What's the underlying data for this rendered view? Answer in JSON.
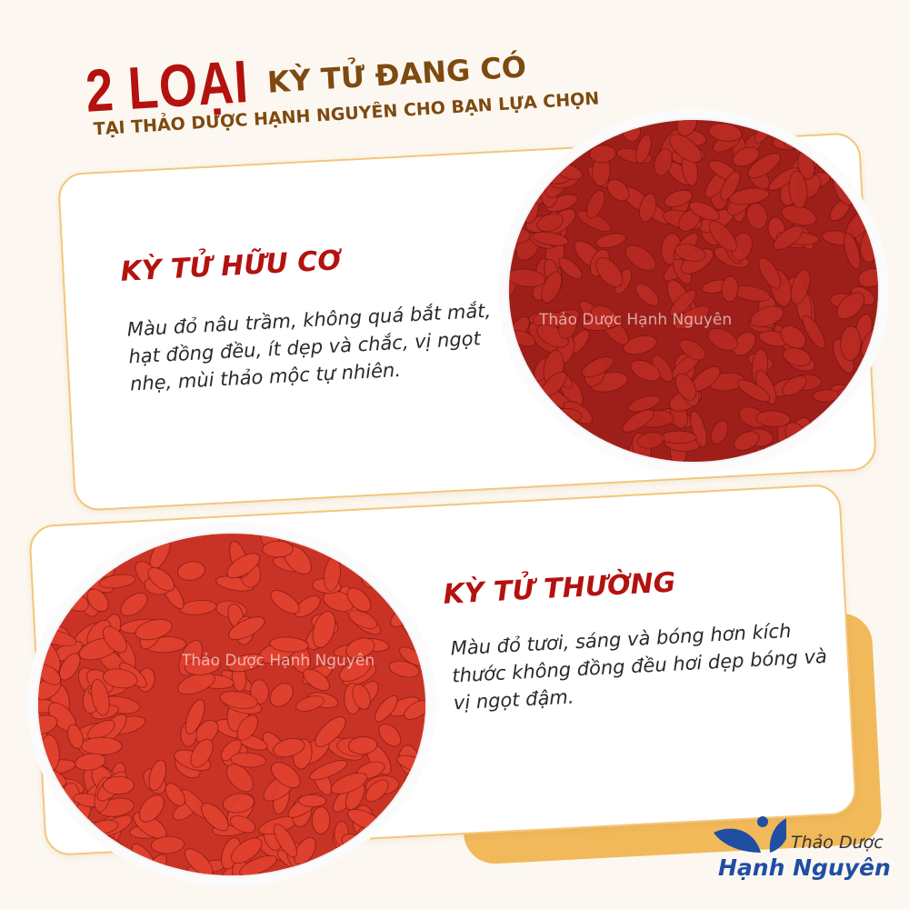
{
  "heading": {
    "count": "2 LOẠI",
    "line1": "KỲ TỬ ĐANG CÓ",
    "line2": "TẠI THẢO DƯỢC HẠNH NGUYÊN CHO BẠN LỰA CHỌN"
  },
  "cards": [
    {
      "title": "KỲ TỬ HỮU CƠ",
      "description": "Màu đỏ nâu trầm, không quá bắt mắt, hạt đồng đều, ít dẹp và chắc, vị ngọt nhẹ, mùi thảo mộc tự nhiên.",
      "watermark": "Thảo Dược Hạnh Nguyên",
      "berry_color": "#b82a22"
    },
    {
      "title": "KỲ TỬ THƯỜNG",
      "description": "Màu đỏ tươi, sáng và bóng hơn kích thước không đồng đều hơi dẹp bóng và vị ngọt đậm.",
      "watermark": "Thảo Dược Hạnh Nguyên",
      "berry_color": "#e0402e"
    }
  ],
  "logo": {
    "line1": "Thảo Dược",
    "line2": "Hạnh Nguyên",
    "color": "#1f4ea3"
  },
  "colors": {
    "accent_red": "#b3120f",
    "brown": "#7e4a10",
    "card_border": "#f3c77a",
    "orange": "#f2b95a",
    "background": "#fcf8f1"
  }
}
